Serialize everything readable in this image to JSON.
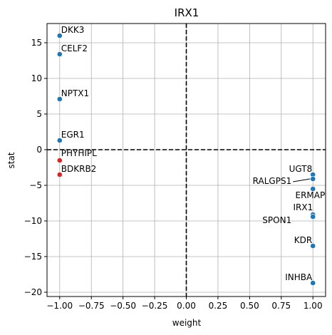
{
  "chart_data": {
    "type": "scatter",
    "title": "IRX1",
    "xlabel": "weight",
    "ylabel": "stat",
    "xlim": [
      -1.1,
      1.1
    ],
    "ylim": [
      -20.6,
      17.7
    ],
    "xticks": [
      -1.0,
      -0.75,
      -0.5,
      -0.25,
      0.0,
      0.25,
      0.5,
      0.75,
      1.0
    ],
    "xtick_labels": [
      "−1.00",
      "−0.75",
      "−0.50",
      "−0.25",
      "0.00",
      "0.25",
      "0.50",
      "0.75",
      "1.00"
    ],
    "yticks": [
      -20,
      -15,
      -10,
      -5,
      0,
      5,
      10,
      15
    ],
    "ytick_labels": [
      "−20",
      "−15",
      "−10",
      "−5",
      "0",
      "5",
      "10",
      "15"
    ],
    "grid": true,
    "reference_lines": {
      "x": 0,
      "y": 0
    },
    "colors": {
      "positive": "#1f77b4",
      "negative": "#d62728"
    },
    "points": [
      {
        "label": "DKK3",
        "x": -1.0,
        "y": 16.0,
        "color": "#1f77b4"
      },
      {
        "label": "CELF2",
        "x": -1.0,
        "y": 13.4,
        "color": "#1f77b4"
      },
      {
        "label": "NPTX1",
        "x": -1.0,
        "y": 7.1,
        "color": "#1f77b4"
      },
      {
        "label": "EGR1",
        "x": -1.0,
        "y": 1.3,
        "color": "#1f77b4"
      },
      {
        "label": "PHYHIPL",
        "x": -1.0,
        "y": -1.5,
        "color": "#d62728"
      },
      {
        "label": "BDKRB2",
        "x": -1.0,
        "y": -3.5,
        "color": "#d62728"
      },
      {
        "label": "UGT8",
        "x": 1.0,
        "y": -3.5,
        "color": "#1f77b4"
      },
      {
        "label": "RALGPS1",
        "x": 1.0,
        "y": -4.1,
        "color": "#1f77b4"
      },
      {
        "label": "ERMAP",
        "x": 1.0,
        "y": -5.5,
        "color": "#1f77b4"
      },
      {
        "label": "IRX1",
        "x": 1.0,
        "y": -9.1,
        "color": "#1f77b4"
      },
      {
        "label": "SPON1",
        "x": 1.0,
        "y": -9.4,
        "color": "#1f77b4"
      },
      {
        "label": "KDR",
        "x": 1.0,
        "y": -13.5,
        "color": "#1f77b4"
      },
      {
        "label": "INHBA",
        "x": 1.0,
        "y": -18.7,
        "color": "#1f77b4"
      }
    ]
  }
}
